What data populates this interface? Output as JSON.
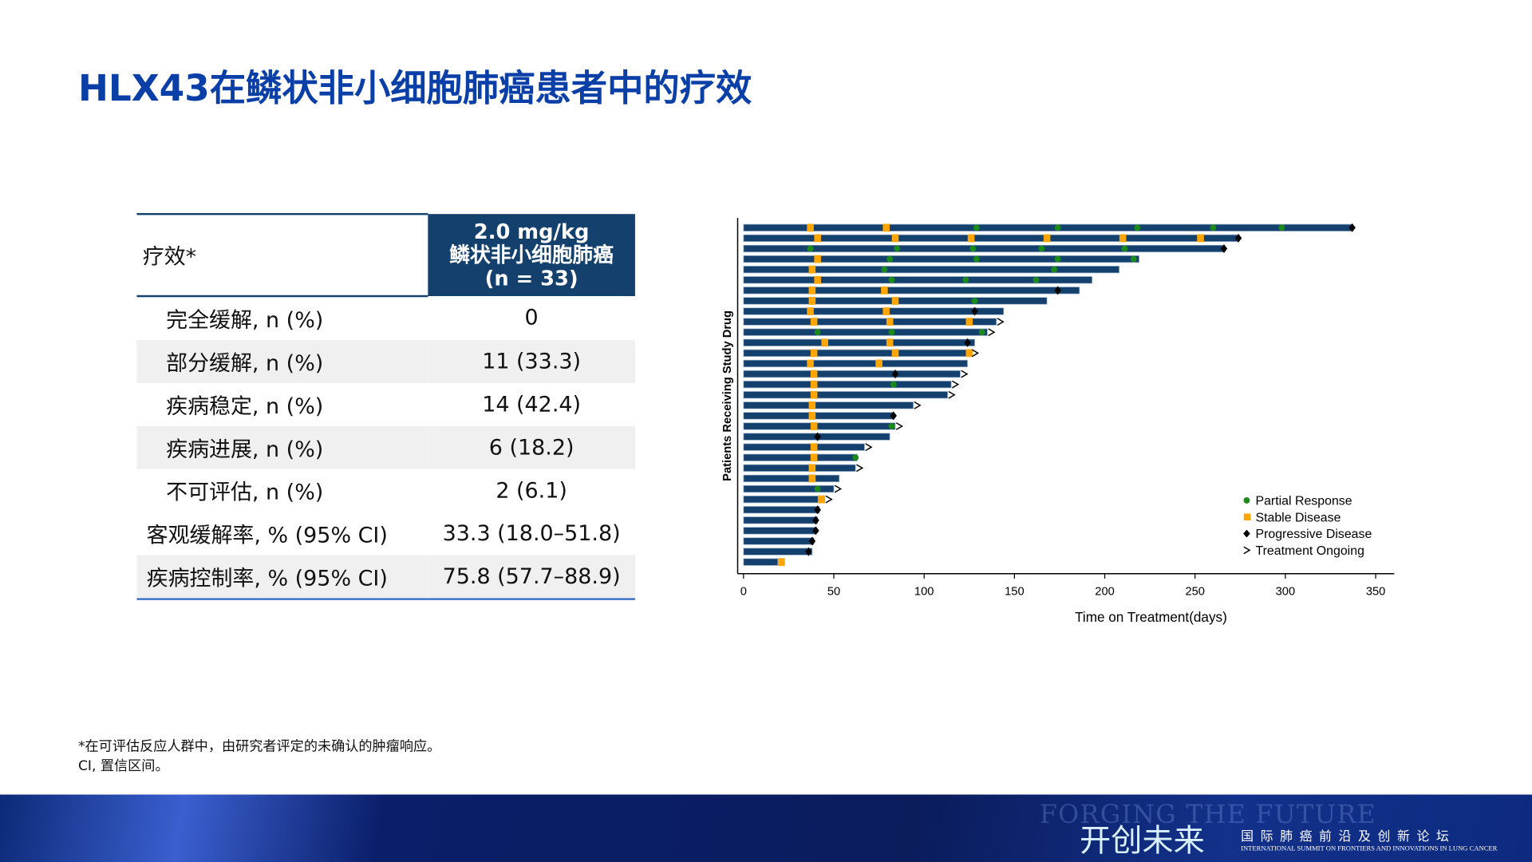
{
  "title": "HLX43在鳞状非小细胞肺癌患者中的疗效",
  "table": {
    "header_left": "疗效*",
    "header_right": [
      "2.0 mg/kg",
      "鳞状非小细胞肺癌",
      "(n = 33)"
    ],
    "rows": [
      {
        "label": "完全缓解, n (%)",
        "value": "0"
      },
      {
        "label": "部分缓解, n (%)",
        "value": "11 (33.3)"
      },
      {
        "label": "疾病稳定, n (%)",
        "value": "14 (42.4)"
      },
      {
        "label": "疾病进展, n (%)",
        "value": "6 (18.2)"
      },
      {
        "label": "不可评估, n (%)",
        "value": "2 (6.1)"
      },
      {
        "label": "客观缓解率, % (95% CI)",
        "value": "33.3 (18.0–51.8)"
      },
      {
        "label": "疾病控制率, % (95% CI)",
        "value": "75.8 (57.7–88.9)"
      }
    ]
  },
  "footnotes": [
    "*在可评估反应人群中，由研究者评定的未确认的肿瘤响应。",
    "CI, 置信区间。"
  ],
  "banner": {
    "watermark": "FORGING THE FUTURE",
    "slogan": "开创未来",
    "forum_cn": "国际肺癌前沿及创新论坛",
    "forum_en": "INTERNATIONAL SUMMIT ON FRONTIERS AND INNOVATIONS IN LUNG CANCER"
  },
  "chart_data": {
    "type": "swimmer",
    "xlabel": "Time on Treatment(days)",
    "ylabel": "Patients Receiving Study Drug",
    "xlim": [
      0,
      350
    ],
    "xticks": [
      0,
      50,
      100,
      150,
      200,
      250,
      300,
      350
    ],
    "legend_position": "bottom-right",
    "legend": [
      {
        "key": "PR",
        "label": "Partial Response",
        "color": "#1a8a1a"
      },
      {
        "key": "SD",
        "label": "Stable Disease",
        "color": "#ffa500"
      },
      {
        "key": "PD",
        "label": "Progressive Disease",
        "color": "#000000"
      },
      {
        "key": "ON",
        "label": "Treatment Ongoing",
        "color": "#000000"
      }
    ],
    "bar_color": "#14406e",
    "patients": [
      {
        "days": 337,
        "ongoing": false,
        "events": [
          [
            "SD",
            37
          ],
          [
            "SD",
            79
          ],
          [
            "PR",
            129
          ],
          [
            "PR",
            174
          ],
          [
            "PR",
            218
          ],
          [
            "PR",
            260
          ],
          [
            "PR",
            298
          ],
          [
            "PD",
            337
          ]
        ]
      },
      {
        "days": 274,
        "ongoing": false,
        "events": [
          [
            "SD",
            41
          ],
          [
            "SD",
            84
          ],
          [
            "SD",
            126
          ],
          [
            "SD",
            168
          ],
          [
            "SD",
            210
          ],
          [
            "SD",
            253
          ],
          [
            "PD",
            274
          ]
        ]
      },
      {
        "days": 266,
        "ongoing": false,
        "events": [
          [
            "PR",
            37
          ],
          [
            "PR",
            85
          ],
          [
            "PR",
            127
          ],
          [
            "PR",
            165
          ],
          [
            "PR",
            211
          ],
          [
            "PD",
            266
          ]
        ]
      },
      {
        "days": 219,
        "ongoing": false,
        "events": [
          [
            "SD",
            41
          ],
          [
            "PR",
            81
          ],
          [
            "PR",
            129
          ],
          [
            "PR",
            174
          ],
          [
            "PR",
            216
          ]
        ]
      },
      {
        "days": 208,
        "ongoing": false,
        "events": [
          [
            "SD",
            38
          ],
          [
            "PR",
            78
          ],
          [
            "PR",
            172
          ]
        ]
      },
      {
        "days": 193,
        "ongoing": false,
        "events": [
          [
            "SD",
            41
          ],
          [
            "PR",
            82
          ],
          [
            "PR",
            123
          ],
          [
            "PR",
            162
          ]
        ]
      },
      {
        "days": 186,
        "ongoing": false,
        "events": [
          [
            "SD",
            38
          ],
          [
            "SD",
            78
          ],
          [
            "PD",
            174
          ]
        ]
      },
      {
        "days": 168,
        "ongoing": false,
        "events": [
          [
            "SD",
            38
          ],
          [
            "SD",
            84
          ],
          [
            "PR",
            128
          ]
        ]
      },
      {
        "days": 144,
        "ongoing": false,
        "events": [
          [
            "SD",
            37
          ],
          [
            "SD",
            79
          ],
          [
            "PD",
            128
          ]
        ]
      },
      {
        "days": 140,
        "ongoing": true,
        "events": [
          [
            "SD",
            39
          ],
          [
            "SD",
            81
          ],
          [
            "SD",
            125
          ]
        ]
      },
      {
        "days": 135,
        "ongoing": true,
        "events": [
          [
            "PR",
            41
          ],
          [
            "PR",
            82
          ],
          [
            "PR",
            132
          ]
        ]
      },
      {
        "days": 128,
        "ongoing": false,
        "events": [
          [
            "SD",
            45
          ],
          [
            "SD",
            81
          ],
          [
            "PD",
            124
          ]
        ]
      },
      {
        "days": 126,
        "ongoing": true,
        "events": [
          [
            "SD",
            39
          ],
          [
            "SD",
            84
          ],
          [
            "SD",
            125
          ]
        ]
      },
      {
        "days": 124,
        "ongoing": false,
        "events": [
          [
            "SD",
            37
          ],
          [
            "SD",
            75
          ]
        ]
      },
      {
        "days": 120,
        "ongoing": true,
        "events": [
          [
            "SD",
            39
          ],
          [
            "PD",
            84
          ]
        ]
      },
      {
        "days": 115,
        "ongoing": true,
        "events": [
          [
            "SD",
            39
          ],
          [
            "PR",
            83
          ]
        ]
      },
      {
        "days": 113,
        "ongoing": true,
        "events": [
          [
            "SD",
            39
          ]
        ]
      },
      {
        "days": 94,
        "ongoing": true,
        "events": [
          [
            "SD",
            38
          ]
        ]
      },
      {
        "days": 83,
        "ongoing": false,
        "events": [
          [
            "SD",
            38
          ],
          [
            "PD",
            83
          ]
        ]
      },
      {
        "days": 84,
        "ongoing": true,
        "events": [
          [
            "SD",
            39
          ],
          [
            "PR",
            82
          ]
        ]
      },
      {
        "days": 81,
        "ongoing": false,
        "events": [
          [
            "PD",
            41
          ]
        ]
      },
      {
        "days": 67,
        "ongoing": true,
        "events": [
          [
            "SD",
            39
          ]
        ]
      },
      {
        "days": 63,
        "ongoing": false,
        "events": [
          [
            "SD",
            39
          ],
          [
            "PR",
            62
          ]
        ]
      },
      {
        "days": 62,
        "ongoing": true,
        "events": [
          [
            "SD",
            38
          ]
        ]
      },
      {
        "days": 53,
        "ongoing": false,
        "events": [
          [
            "SD",
            38
          ]
        ]
      },
      {
        "days": 50,
        "ongoing": true,
        "events": [
          [
            "PR",
            41
          ]
        ]
      },
      {
        "days": 45,
        "ongoing": true,
        "events": [
          [
            "SD",
            43
          ]
        ]
      },
      {
        "days": 42,
        "ongoing": false,
        "events": [
          [
            "PD",
            41
          ]
        ]
      },
      {
        "days": 41,
        "ongoing": false,
        "events": [
          [
            "PD",
            40
          ]
        ]
      },
      {
        "days": 40,
        "ongoing": false,
        "events": [
          [
            "PD",
            40
          ]
        ]
      },
      {
        "days": 39,
        "ongoing": false,
        "events": [
          [
            "PD",
            38
          ]
        ]
      },
      {
        "days": 38,
        "ongoing": false,
        "events": [
          [
            "PD",
            36
          ]
        ]
      },
      {
        "days": 19,
        "ongoing": false,
        "events": [
          [
            "SD",
            21
          ]
        ]
      }
    ]
  }
}
